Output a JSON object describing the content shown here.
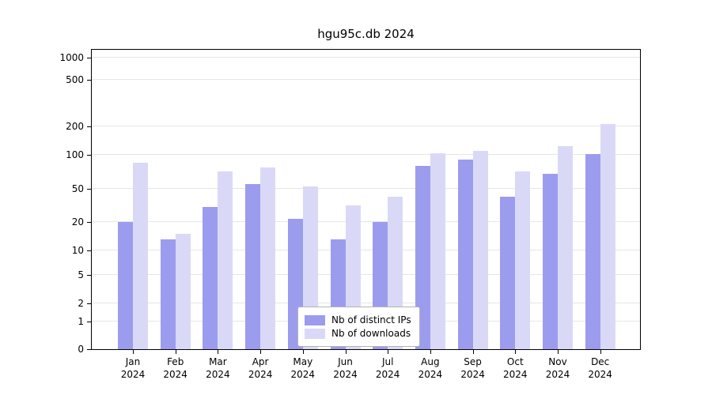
{
  "chart_data": {
    "type": "bar",
    "title": "hgu95c.db 2024",
    "categories": [
      "Jan",
      "Feb",
      "Mar",
      "Apr",
      "May",
      "Jun",
      "Jul",
      "Aug",
      "Sep",
      "Oct",
      "Nov",
      "Dec"
    ],
    "year": "2024",
    "series": [
      {
        "name": "Nb of distinct IPs",
        "color": "#9c9cee",
        "values": [
          20,
          13,
          30,
          55,
          22,
          13,
          20,
          80,
          92,
          40,
          68,
          103
        ]
      },
      {
        "name": "Nb of downloads",
        "color": "#d9d9f7",
        "values": [
          85,
          15,
          72,
          78,
          53,
          32,
          40,
          105,
          112,
          72,
          125,
          210
        ]
      }
    ],
    "yticks": [
      0,
      1,
      2,
      5,
      10,
      20,
      50,
      100,
      200,
      500,
      1000
    ],
    "ylim": [
      0,
      1100
    ],
    "grid": true,
    "legend_position": "lower center inside",
    "xlabel": "",
    "ylabel": ""
  }
}
